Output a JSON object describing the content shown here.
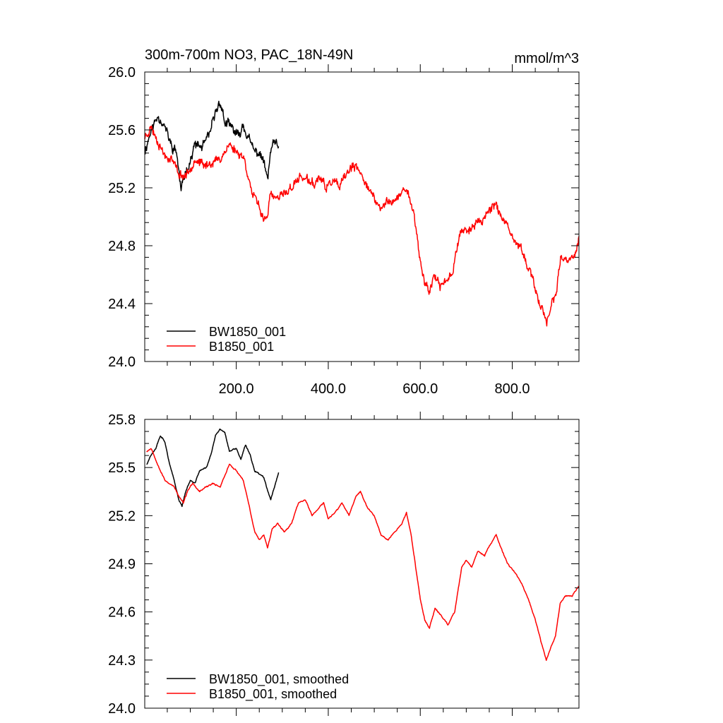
{
  "chart_data": [
    {
      "type": "line",
      "title": "300m-700m NO3, PAC_18N-49N",
      "units": "mmol/m^3",
      "xlim": [
        1,
        945
      ],
      "ylim": [
        24.0,
        26.0
      ],
      "x_ticks": [
        200,
        400,
        600,
        800
      ],
      "x_tick_labels": [
        "200.0",
        "400.0",
        "600.0",
        "800.0"
      ],
      "y_ticks": [
        24.0,
        24.4,
        24.8,
        25.2,
        25.6,
        26.0
      ],
      "y_tick_labels": [
        "24.0",
        "24.4",
        "24.8",
        "25.2",
        "25.6",
        "26.0"
      ],
      "legend_position": "bottom-left",
      "grid": false,
      "series": [
        {
          "name": "BW1850_001",
          "color": "#000000",
          "seed": 11,
          "noise": 0.05,
          "anchors": [
            [
              1,
              25.45
            ],
            [
              15,
              25.6
            ],
            [
              30,
              25.7
            ],
            [
              45,
              25.62
            ],
            [
              60,
              25.48
            ],
            [
              70,
              25.45
            ],
            [
              80,
              25.18
            ],
            [
              90,
              25.32
            ],
            [
              100,
              25.38
            ],
            [
              110,
              25.5
            ],
            [
              125,
              25.48
            ],
            [
              140,
              25.55
            ],
            [
              155,
              25.72
            ],
            [
              165,
              25.8
            ],
            [
              175,
              25.65
            ],
            [
              190,
              25.62
            ],
            [
              205,
              25.55
            ],
            [
              215,
              25.64
            ],
            [
              225,
              25.55
            ],
            [
              240,
              25.45
            ],
            [
              250,
              25.44
            ],
            [
              260,
              25.38
            ],
            [
              268,
              25.25
            ],
            [
              275,
              25.46
            ],
            [
              285,
              25.52
            ],
            [
              292,
              25.45
            ]
          ]
        },
        {
          "name": "B1850_001",
          "color": "#ff0000",
          "seed": 23,
          "noise": 0.045,
          "anchors": [
            [
              1,
              25.55
            ],
            [
              15,
              25.62
            ],
            [
              30,
              25.52
            ],
            [
              45,
              25.42
            ],
            [
              60,
              25.4
            ],
            [
              75,
              25.3
            ],
            [
              85,
              25.28
            ],
            [
              95,
              25.3
            ],
            [
              110,
              25.4
            ],
            [
              130,
              25.35
            ],
            [
              150,
              25.38
            ],
            [
              165,
              25.4
            ],
            [
              175,
              25.45
            ],
            [
              185,
              25.5
            ],
            [
              200,
              25.45
            ],
            [
              215,
              25.42
            ],
            [
              225,
              25.3
            ],
            [
              235,
              25.15
            ],
            [
              245,
              25.1
            ],
            [
              255,
              25.02
            ],
            [
              265,
              24.98
            ],
            [
              275,
              25.15
            ],
            [
              290,
              25.12
            ],
            [
              300,
              25.15
            ],
            [
              320,
              25.2
            ],
            [
              340,
              25.28
            ],
            [
              355,
              25.25
            ],
            [
              370,
              25.22
            ],
            [
              380,
              25.28
            ],
            [
              395,
              25.2
            ],
            [
              410,
              25.25
            ],
            [
              425,
              25.2
            ],
            [
              440,
              25.3
            ],
            [
              455,
              25.35
            ],
            [
              465,
              25.32
            ],
            [
              480,
              25.25
            ],
            [
              500,
              25.12
            ],
            [
              515,
              25.05
            ],
            [
              530,
              25.12
            ],
            [
              545,
              25.1
            ],
            [
              555,
              25.15
            ],
            [
              570,
              25.2
            ],
            [
              580,
              25.1
            ],
            [
              590,
              24.95
            ],
            [
              600,
              24.68
            ],
            [
              610,
              24.55
            ],
            [
              620,
              24.48
            ],
            [
              630,
              24.6
            ],
            [
              640,
              24.52
            ],
            [
              655,
              24.55
            ],
            [
              670,
              24.62
            ],
            [
              685,
              24.88
            ],
            [
              695,
              24.92
            ],
            [
              705,
              24.9
            ],
            [
              720,
              24.95
            ],
            [
              735,
              24.98
            ],
            [
              750,
              25.05
            ],
            [
              765,
              25.1
            ],
            [
              775,
              25.0
            ],
            [
              790,
              24.92
            ],
            [
              800,
              24.85
            ],
            [
              815,
              24.8
            ],
            [
              830,
              24.7
            ],
            [
              845,
              24.55
            ],
            [
              860,
              24.4
            ],
            [
              875,
              24.28
            ],
            [
              885,
              24.4
            ],
            [
              895,
              24.45
            ],
            [
              905,
              24.7
            ],
            [
              920,
              24.7
            ],
            [
              935,
              24.72
            ],
            [
              945,
              24.85
            ]
          ]
        }
      ]
    },
    {
      "type": "line",
      "xlim": [
        1,
        945
      ],
      "ylim": [
        24.0,
        25.8
      ],
      "x_ticks": [
        200,
        400,
        600,
        800
      ],
      "y_ticks": [
        24.0,
        24.3,
        24.6,
        24.9,
        25.2,
        25.5,
        25.8
      ],
      "y_tick_labels": [
        "24.0",
        "24.3",
        "24.6",
        "24.9",
        "25.2",
        "25.5",
        "25.8"
      ],
      "legend_position": "bottom-left",
      "grid": false,
      "series": [
        {
          "name": "BW1850_001, smoothed",
          "color": "#000000",
          "seed": 37,
          "noise": 0.006,
          "anchors": [
            [
              5,
              25.52
            ],
            [
              15,
              25.58
            ],
            [
              25,
              25.62
            ],
            [
              35,
              25.7
            ],
            [
              45,
              25.66
            ],
            [
              55,
              25.52
            ],
            [
              65,
              25.42
            ],
            [
              75,
              25.3
            ],
            [
              82,
              25.26
            ],
            [
              90,
              25.35
            ],
            [
              100,
              25.42
            ],
            [
              110,
              25.4
            ],
            [
              120,
              25.48
            ],
            [
              135,
              25.5
            ],
            [
              145,
              25.58
            ],
            [
              155,
              25.7
            ],
            [
              165,
              25.74
            ],
            [
              175,
              25.72
            ],
            [
              185,
              25.6
            ],
            [
              200,
              25.62
            ],
            [
              210,
              25.55
            ],
            [
              220,
              25.64
            ],
            [
              230,
              25.58
            ],
            [
              240,
              25.48
            ],
            [
              250,
              25.46
            ],
            [
              260,
              25.44
            ],
            [
              268,
              25.36
            ],
            [
              275,
              25.3
            ],
            [
              285,
              25.4
            ],
            [
              292,
              25.47
            ]
          ]
        },
        {
          "name": "B1850_001, smoothed",
          "color": "#ff0000",
          "seed": 53,
          "noise": 0.006,
          "anchors": [
            [
              5,
              25.6
            ],
            [
              15,
              25.62
            ],
            [
              25,
              25.55
            ],
            [
              35,
              25.48
            ],
            [
              45,
              25.42
            ],
            [
              55,
              25.4
            ],
            [
              65,
              25.38
            ],
            [
              75,
              25.32
            ],
            [
              85,
              25.28
            ],
            [
              95,
              25.36
            ],
            [
              105,
              25.4
            ],
            [
              120,
              25.35
            ],
            [
              135,
              25.38
            ],
            [
              150,
              25.4
            ],
            [
              165,
              25.38
            ],
            [
              175,
              25.45
            ],
            [
              185,
              25.52
            ],
            [
              200,
              25.48
            ],
            [
              215,
              25.42
            ],
            [
              225,
              25.3
            ],
            [
              240,
              25.1
            ],
            [
              250,
              25.05
            ],
            [
              260,
              25.08
            ],
            [
              268,
              25.0
            ],
            [
              278,
              25.12
            ],
            [
              290,
              25.15
            ],
            [
              305,
              25.1
            ],
            [
              320,
              25.15
            ],
            [
              335,
              25.28
            ],
            [
              350,
              25.3
            ],
            [
              365,
              25.2
            ],
            [
              380,
              25.25
            ],
            [
              390,
              25.28
            ],
            [
              400,
              25.18
            ],
            [
              415,
              25.22
            ],
            [
              430,
              25.28
            ],
            [
              445,
              25.2
            ],
            [
              460,
              25.32
            ],
            [
              470,
              25.35
            ],
            [
              485,
              25.25
            ],
            [
              500,
              25.2
            ],
            [
              515,
              25.08
            ],
            [
              530,
              25.05
            ],
            [
              545,
              25.1
            ],
            [
              560,
              25.15
            ],
            [
              570,
              25.22
            ],
            [
              580,
              25.08
            ],
            [
              590,
              24.88
            ],
            [
              600,
              24.68
            ],
            [
              610,
              24.55
            ],
            [
              620,
              24.5
            ],
            [
              632,
              24.62
            ],
            [
              645,
              24.58
            ],
            [
              660,
              24.52
            ],
            [
              675,
              24.6
            ],
            [
              690,
              24.88
            ],
            [
              700,
              24.92
            ],
            [
              712,
              24.88
            ],
            [
              725,
              24.98
            ],
            [
              740,
              24.95
            ],
            [
              752,
              25.02
            ],
            [
              765,
              25.08
            ],
            [
              778,
              24.98
            ],
            [
              790,
              24.9
            ],
            [
              805,
              24.85
            ],
            [
              820,
              24.78
            ],
            [
              835,
              24.68
            ],
            [
              850,
              24.55
            ],
            [
              862,
              24.42
            ],
            [
              874,
              24.3
            ],
            [
              884,
              24.38
            ],
            [
              894,
              24.45
            ],
            [
              904,
              24.65
            ],
            [
              915,
              24.7
            ],
            [
              930,
              24.7
            ],
            [
              945,
              24.76
            ]
          ]
        }
      ]
    }
  ]
}
